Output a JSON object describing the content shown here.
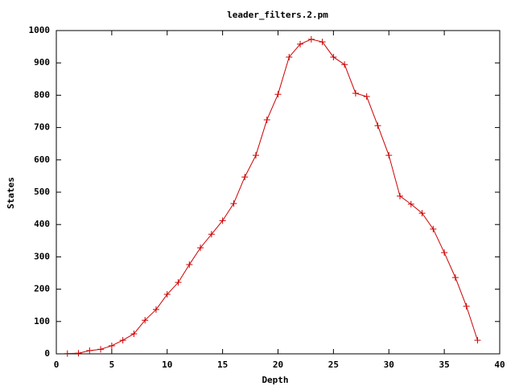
{
  "chart_data": {
    "type": "line",
    "title": "leader_filters.2.pm",
    "xlabel": "Depth",
    "ylabel": "States",
    "x": [
      1,
      2,
      3,
      4,
      5,
      6,
      7,
      8,
      9,
      10,
      11,
      12,
      13,
      14,
      15,
      16,
      17,
      18,
      19,
      20,
      21,
      22,
      23,
      24,
      25,
      26,
      27,
      28,
      29,
      30,
      31,
      32,
      33,
      34,
      35,
      36,
      37,
      38
    ],
    "values": [
      1,
      2,
      10,
      14,
      25,
      42,
      62,
      104,
      137,
      184,
      221,
      276,
      328,
      370,
      412,
      465,
      547,
      614,
      724,
      803,
      918,
      958,
      973,
      965,
      918,
      895,
      806,
      796,
      706,
      614,
      488,
      463,
      435,
      386,
      313,
      236,
      147,
      42
    ],
    "color": "#cc0000",
    "xlim": [
      0,
      40
    ],
    "xticks": [
      0,
      5,
      10,
      15,
      20,
      25,
      30,
      35,
      40
    ],
    "ylim": [
      0,
      1000
    ],
    "yticks": [
      0,
      100,
      200,
      300,
      400,
      500,
      600,
      700,
      800,
      900,
      1000
    ],
    "grid": false
  }
}
